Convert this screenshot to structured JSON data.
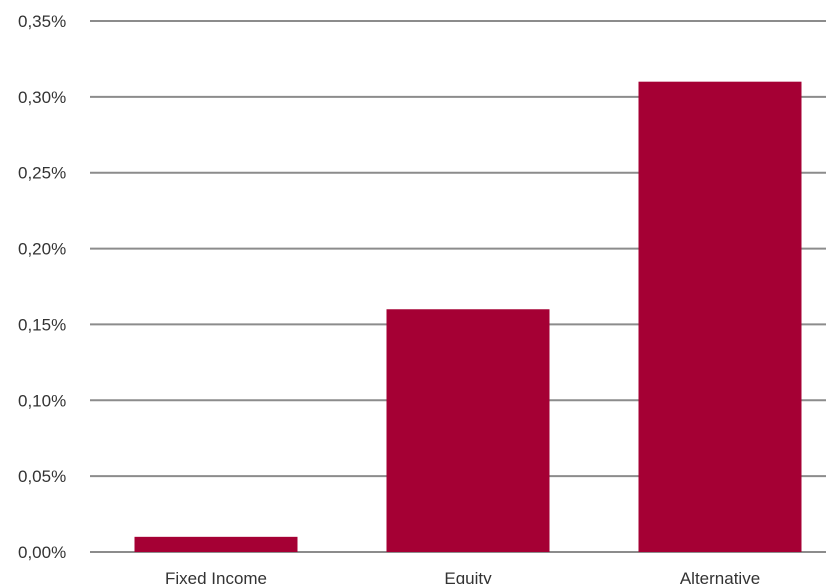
{
  "chart_data": {
    "type": "bar",
    "categories": [
      "Fixed Income",
      "Equity",
      "Alternative"
    ],
    "values": [
      0.01,
      0.16,
      0.31
    ],
    "y_ticks": [
      "0,00%",
      "0,05%",
      "0,10%",
      "0,15%",
      "0,20%",
      "0,25%",
      "0,30%",
      "0,35%"
    ],
    "ylim": [
      0,
      0.35
    ],
    "y_unit": "%",
    "grid": true,
    "bar_color": "#a50034",
    "title": "",
    "xlabel": "",
    "ylabel": ""
  }
}
